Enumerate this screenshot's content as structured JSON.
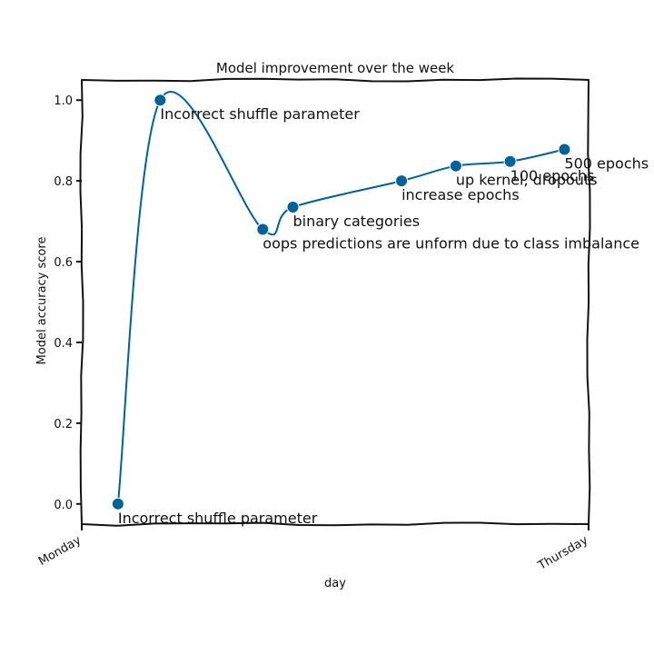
{
  "chart_data": {
    "type": "line",
    "title": "Model improvement over the week",
    "xlabel": "day",
    "ylabel": "Model accuracy score",
    "ylim": [
      -0.05,
      1.05
    ],
    "y_ticks": [
      0.0,
      0.2,
      0.4,
      0.6,
      0.8,
      1.0
    ],
    "y_tick_labels": [
      "0.0",
      "0.2",
      "0.4",
      "0.6",
      "0.8",
      "1.0"
    ],
    "x_tick_labels": [
      "Monday",
      "Thursday"
    ],
    "x_domain": [
      "Monday",
      "Thursday"
    ],
    "grid": false,
    "color": "#00629b",
    "points": [
      {
        "t": "Monday 06:00",
        "y": 0.0,
        "label": "Incorrect shuffle parameter"
      },
      {
        "t": "Monday 13:00",
        "y": 1.0,
        "label": "Incorrect shuffle parameter"
      },
      {
        "t": "Tuesday 06:00",
        "y": 0.68,
        "label": "oops predictions are unform due to class imbalance"
      },
      {
        "t": "Tuesday 11:00",
        "y": 0.735,
        "label": "binary categories"
      },
      {
        "t": "Wednesday 05:00",
        "y": 0.8,
        "label": "increase epochs"
      },
      {
        "t": "Wednesday 14:00",
        "y": 0.837,
        "label": "up kernel, dropouts"
      },
      {
        "t": "Wednesday 23:00",
        "y": 0.848,
        "label": "100 epochs"
      },
      {
        "t": "Thursday 08:00",
        "y": 0.878,
        "label": "500 epochs"
      }
    ]
  }
}
